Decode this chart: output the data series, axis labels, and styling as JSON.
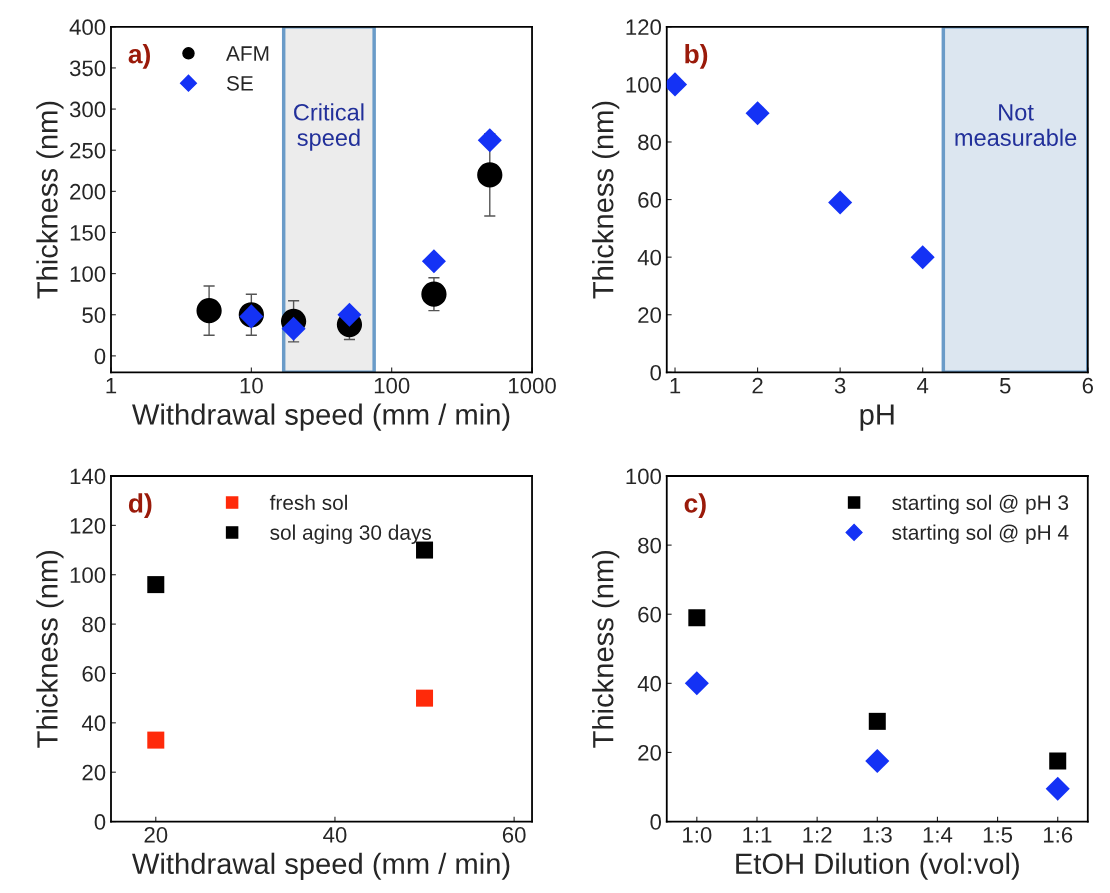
{
  "chart_data": [
    {
      "type": "scatter",
      "xlabel": "Withdrawal speed (mm / min)",
      "ylabel": "Thickness (nm)",
      "log": "x",
      "xlim": [
        1,
        1000
      ],
      "xticks": [
        1,
        10,
        100,
        1000
      ],
      "ylim": [
        -20,
        400
      ],
      "yticks": [
        0,
        50,
        100,
        150,
        200,
        250,
        300,
        350,
        400
      ],
      "legend": "top left",
      "annotations": [
        "a)"
      ],
      "bands": [
        {
          "axis": "x",
          "from": 17,
          "to": 75,
          "label": "Critical speed",
          "color": "#ececec"
        }
      ],
      "series": [
        {
          "name": "AFM",
          "color": "#000000",
          "marker": "circle",
          "x": [
            5,
            10,
            20,
            50,
            200,
            500
          ],
          "values": [
            55,
            50,
            42,
            38,
            75,
            220
          ],
          "errors": [
            30,
            25,
            25,
            18,
            20,
            50
          ]
        },
        {
          "name": "SE",
          "color": "#1432f5",
          "marker": "diamond",
          "x": [
            10,
            20,
            50,
            200,
            500
          ],
          "values": [
            48,
            33,
            50,
            115,
            262
          ]
        }
      ]
    },
    {
      "type": "scatter",
      "xlabel": "pH",
      "ylabel": "Thickness (nm)",
      "xlim": [
        0.9,
        6
      ],
      "xticks": [
        1,
        2,
        3,
        4,
        5,
        6
      ],
      "ylim": [
        0,
        120
      ],
      "yticks": [
        0,
        20,
        40,
        60,
        80,
        100,
        120
      ],
      "annotations": [
        "b)"
      ],
      "bands": [
        {
          "axis": "x",
          "from": 4.25,
          "to": 6,
          "label": "Not measurable",
          "color": "#dce6f0"
        }
      ],
      "series": [
        {
          "color": "#1432f5",
          "marker": "diamond",
          "x": [
            1,
            2,
            3,
            4
          ],
          "values": [
            100,
            90,
            59,
            40
          ]
        }
      ]
    },
    {
      "type": "scatter",
      "xlabel": "Withdrawal speed (mm / min)",
      "ylabel": "Thickness (nm)",
      "xlim": [
        15,
        62
      ],
      "xticks": [
        20,
        40,
        60
      ],
      "ylim": [
        0,
        140
      ],
      "yticks": [
        0,
        20,
        40,
        60,
        80,
        100,
        120,
        140
      ],
      "legend": "top",
      "annotations": [
        "d)"
      ],
      "series": [
        {
          "name": "fresh sol",
          "color": "#ff2a0a",
          "marker": "square",
          "x": [
            20,
            50
          ],
          "values": [
            33,
            50
          ]
        },
        {
          "name": "sol aging 30 days",
          "color": "#000000",
          "marker": "square",
          "x": [
            20,
            50
          ],
          "values": [
            96,
            110
          ]
        }
      ]
    },
    {
      "type": "scatter",
      "xlabel": "EtOH Dilution (vol:vol)",
      "ylabel": "Thickness (nm)",
      "categories": [
        "1:0",
        "1:1",
        "1:2",
        "1:3",
        "1:4",
        "1:5",
        "1:6"
      ],
      "ylim": [
        0,
        100
      ],
      "yticks": [
        0,
        20,
        40,
        60,
        80,
        100
      ],
      "legend": "top right",
      "annotations": [
        "c)"
      ],
      "series": [
        {
          "name": "starting sol @ pH 3",
          "color": "#000000",
          "marker": "square",
          "values": [
            59,
            null,
            null,
            29,
            null,
            null,
            17.5
          ]
        },
        {
          "name": "starting sol @ pH 4",
          "color": "#1432f5",
          "marker": "diamond",
          "values": [
            40,
            null,
            null,
            17.5,
            null,
            null,
            9.5
          ]
        }
      ]
    }
  ]
}
